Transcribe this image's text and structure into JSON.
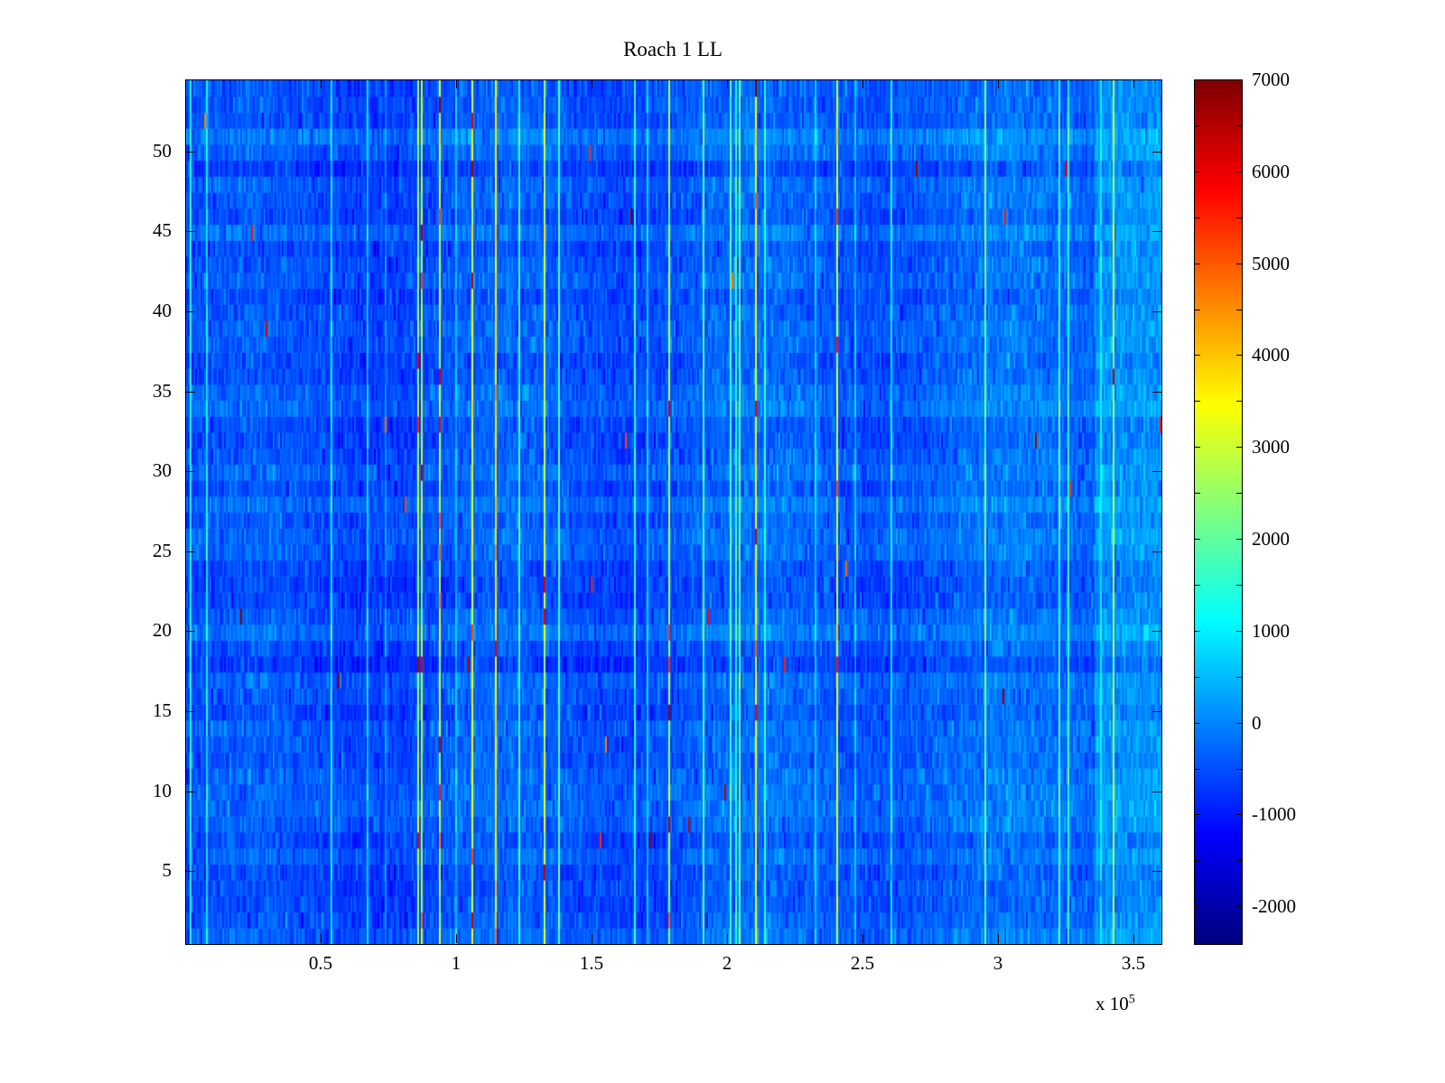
{
  "chart_data": {
    "type": "heatmap",
    "title": "Roach 1 LL",
    "xlabel": "",
    "ylabel": "",
    "legend_position": "colorbar-right",
    "grid": false,
    "x_axis": {
      "min": 0,
      "max": 360000,
      "tick_values": [
        50000,
        100000,
        150000,
        200000,
        250000,
        300000,
        350000
      ],
      "tick_labels": [
        "0.5",
        "1",
        "1.5",
        "2",
        "2.5",
        "3",
        "3.5"
      ],
      "offset_label_base": "x 10",
      "offset_label_exponent": "5"
    },
    "y_axis": {
      "min": 0.5,
      "max": 54.5,
      "tick_values": [
        5,
        10,
        15,
        20,
        25,
        30,
        35,
        40,
        45,
        50
      ],
      "tick_labels": [
        "5",
        "10",
        "15",
        "20",
        "25",
        "30",
        "35",
        "40",
        "45",
        "50"
      ]
    },
    "colorbar": {
      "min": -2400,
      "max": 7000,
      "tick_values": [
        -2000,
        -1000,
        0,
        1000,
        2000,
        3000,
        4000,
        5000,
        6000,
        7000
      ],
      "tick_labels": [
        "-2000",
        "-1000",
        "0",
        "1000",
        "2000",
        "3000",
        "4000",
        "5000",
        "6000",
        "7000"
      ],
      "minor_tick_step": 500,
      "colormap": "jet"
    },
    "description": "Dense spectrogram-style heatmap of 54 channels versus sample index (0 to 3.6e5). Background values mostly between -1000 and 500 (blue), with horizontal channel banding and sparse bright vertical streaks reaching 2000-4000 (cyan/yellow) and rare specks near 5000-7000 (red). Right edge region slightly brighter cyan.",
    "generation": {
      "seed": 1337,
      "rows": 54,
      "cols": 540,
      "base_mean": -520,
      "trend_rise": 320,
      "wiggle_amplitude": 160,
      "row_noise_std": 130,
      "cell_noise_std": 240,
      "streak_probability": 0.05,
      "streak_boost_min": 800,
      "streak_boost_max": 2600,
      "hot_streak_probability": 0.013,
      "hot_streak_boost_min": 3000,
      "hot_streak_boost_max": 4200,
      "spark_probability": 0.0012,
      "spark_min": 4500,
      "spark_max": 7000,
      "hot_spark_chance": 0.1,
      "right_bright_start": 0.93,
      "right_bright_boost": 520
    },
    "colors": {
      "background": "#ffffff",
      "axis": "#000000",
      "text": "#000000"
    }
  }
}
